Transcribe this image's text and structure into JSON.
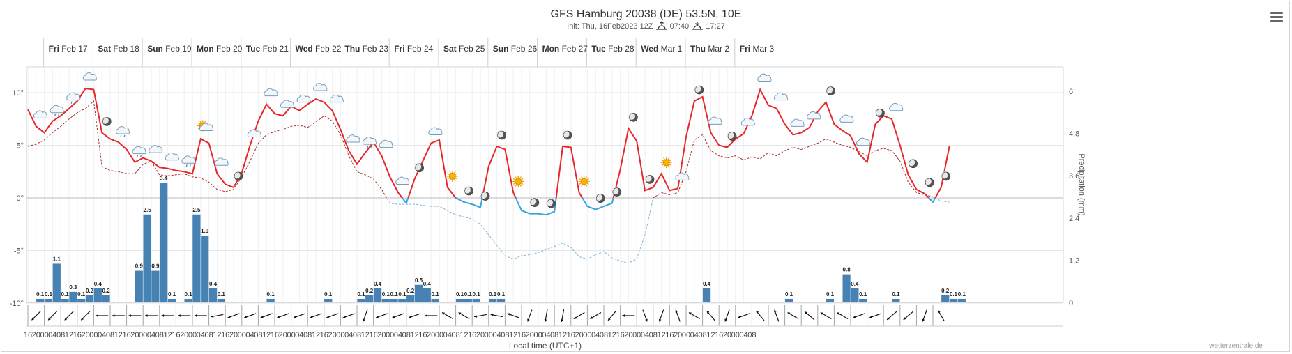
{
  "header": {
    "title": "GFS Hamburg 20038 (DE) 53.5N, 10E",
    "subtitle_prefix": "Init: Thu, 16Feb2023 12Z",
    "sunrise": "07:40",
    "sunset": "17:27"
  },
  "footer": {
    "credit": "wetterzentrale.de"
  },
  "chart_data": {
    "type": "line",
    "xlabel": "Local time (UTC+1)",
    "ylabel_right": "Precipitation (mm)",
    "y_left_ticks": [
      "10°",
      "5°",
      "0°",
      "-5°",
      "-10°"
    ],
    "y_left_range": [
      -10,
      12
    ],
    "y_right_ticks": [
      "6",
      "4.8",
      "3.6",
      "2.4",
      "1.2",
      "0"
    ],
    "y_right_range": [
      0,
      6
    ],
    "days": [
      "Fri Feb 17",
      "Sat Feb 18",
      "Sun Feb 19",
      "Mon Feb 20",
      "Tue Feb 21",
      "Wed Feb 22",
      "Thu Feb 23",
      "Fri Feb 24",
      "Sat Feb 25",
      "Sun Feb 26",
      "Mon Feb 27",
      "Tue Feb 28",
      "Wed Mar 1",
      "Thu Mar 2",
      "Fri Mar 3"
    ],
    "hour_labels": [
      "16",
      "20",
      "00",
      "04",
      "08",
      "12",
      "16",
      "20",
      "00",
      "04",
      "08",
      "12",
      "16",
      "20",
      "00",
      "04",
      "08",
      "12",
      "16",
      "20",
      "00",
      "04",
      "08",
      "12",
      "16",
      "20",
      "00",
      "04",
      "08",
      "12",
      "16",
      "20",
      "00",
      "04",
      "08",
      "12",
      "16",
      "20",
      "00",
      "04",
      "08",
      "12",
      "16",
      "20",
      "00",
      "04",
      "08",
      "12",
      "16",
      "20",
      "00",
      "04",
      "08",
      "12",
      "16",
      "20",
      "00",
      "04",
      "08",
      "12",
      "16",
      "20",
      "00",
      "04",
      "08",
      "12",
      "16",
      "20",
      "00",
      "04",
      "08",
      "12",
      "16",
      "20",
      "00",
      "04",
      "08",
      "12",
      "16",
      "20",
      "00",
      "04",
      "08",
      "12",
      "16",
      "20",
      "00",
      "04",
      "08"
    ],
    "series": [
      {
        "name": "Temperature",
        "color": "#e8262a",
        "color_below_zero": "#3ba3dd",
        "values": [
          8.4,
          6.8,
          6.2,
          7.3,
          7.8,
          8.5,
          9.2,
          10.4,
          10.3,
          6.2,
          5.6,
          5.3,
          4.6,
          3.4,
          3.8,
          3.5,
          2.9,
          2.8,
          2.6,
          2.5,
          2.3,
          5.6,
          5.2,
          2.3,
          1.3,
          1.0,
          2.4,
          5.0,
          7.3,
          8.9,
          8.0,
          7.8,
          8.7,
          8.3,
          8.9,
          9.4,
          9.1,
          8.3,
          6.5,
          4.5,
          3.2,
          4.3,
          5.3,
          4.0,
          2.0,
          0.5,
          -0.5,
          1.8,
          3.5,
          5.2,
          5.5,
          1.0,
          0.0,
          -0.4,
          -0.6,
          -0.9,
          3.0,
          4.9,
          4.6,
          0.5,
          -1.2,
          -1.5,
          -1.5,
          -1.6,
          -1.3,
          4.9,
          4.8,
          0.5,
          -0.8,
          -1.1,
          -0.8,
          -0.5,
          2.7,
          6.6,
          5.4,
          0.7,
          1.0,
          2.3,
          0.7,
          0.9,
          5.8,
          9.2,
          9.6,
          6.2,
          5.0,
          4.8,
          5.6,
          6.1,
          7.8,
          10.3,
          8.8,
          8.5,
          7.0,
          6.0,
          6.2,
          6.7,
          8.2,
          9.1,
          7.0,
          6.4,
          5.9,
          4.2,
          3.4,
          7.0,
          7.8,
          7.5,
          5.0,
          2.2,
          0.8,
          0.4,
          -0.4,
          1.0,
          4.9
        ]
      },
      {
        "name": "Dew point",
        "color": "#a52a2a",
        "dashed": true,
        "values": [
          4.9,
          5.1,
          5.5,
          6.2,
          6.8,
          7.5,
          8.1,
          8.5,
          9.2,
          3.0,
          2.6,
          2.5,
          2.3,
          2.3,
          3.2,
          3.5,
          2.2,
          2.1,
          2.2,
          2.3,
          2.0,
          1.9,
          1.5,
          0.8,
          0.6,
          0.8,
          2.0,
          3.5,
          5.2,
          6.0,
          6.3,
          6.5,
          6.8,
          6.9,
          6.7,
          7.2,
          7.8,
          7.3,
          6.0,
          4.0,
          2.5,
          2.2,
          1.8,
          0.8,
          -0.5,
          -0.6,
          -0.6,
          -0.6,
          -0.7,
          -0.8,
          -0.8,
          -1.2,
          -1.6,
          -1.8,
          -2.0,
          -2.5,
          -3.5,
          -4.5,
          -5.5,
          -5.8,
          -5.5,
          -5.4,
          -5.2,
          -4.9,
          -4.6,
          -4.3,
          -4.7,
          -5.6,
          -5.8,
          -5.4,
          -5.1,
          -5.7,
          -6.0,
          -6.2,
          -5.8,
          -3.5,
          0.0,
          0.5,
          0.3,
          0.5,
          2.5,
          5.5,
          6.0,
          4.5,
          4.0,
          3.8,
          4.0,
          3.6,
          3.9,
          3.7,
          4.3,
          4.0,
          4.5,
          4.8,
          4.6,
          4.9,
          5.2,
          5.6,
          5.3,
          5.0,
          4.8,
          4.4,
          4.0,
          4.5,
          4.7,
          4.5,
          3.5,
          1.5,
          0.5,
          0.3,
          0.1,
          -0.3,
          -0.4
        ]
      }
    ],
    "precip_bars": [
      {
        "x": 1.5,
        "v": 0.1
      },
      {
        "x": 2.5,
        "v": 0.1
      },
      {
        "x": 3.5,
        "v": 1.1
      },
      {
        "x": 4.5,
        "v": 0.1
      },
      {
        "x": 5.5,
        "v": 0.3
      },
      {
        "x": 6.5,
        "v": 0.1
      },
      {
        "x": 7.5,
        "v": 0.2
      },
      {
        "x": 8.5,
        "v": 0.4
      },
      {
        "x": 9.5,
        "v": 0.2
      },
      {
        "x": 13.5,
        "v": 0.9
      },
      {
        "x": 14.5,
        "v": 2.5
      },
      {
        "x": 15.5,
        "v": 0.9
      },
      {
        "x": 16.5,
        "v": 3.4
      },
      {
        "x": 17.5,
        "v": 0.1
      },
      {
        "x": 19.5,
        "v": 0.1
      },
      {
        "x": 20.5,
        "v": 2.5
      },
      {
        "x": 21.5,
        "v": 1.9
      },
      {
        "x": 22.5,
        "v": 0.4
      },
      {
        "x": 23.5,
        "v": 0.1
      },
      {
        "x": 29.5,
        "v": 0.1
      },
      {
        "x": 36.5,
        "v": 0.1
      },
      {
        "x": 40.5,
        "v": 0.1
      },
      {
        "x": 41.5,
        "v": 0.2
      },
      {
        "x": 42.5,
        "v": 0.4
      },
      {
        "x": 43.5,
        "v": 0.1
      },
      {
        "x": 44.5,
        "v": 0.1
      },
      {
        "x": 45.5,
        "v": 0.1
      },
      {
        "x": 46.5,
        "v": 0.2
      },
      {
        "x": 47.5,
        "v": 0.5
      },
      {
        "x": 48.5,
        "v": 0.4
      },
      {
        "x": 49.5,
        "v": 0.1
      },
      {
        "x": 52.5,
        "v": 0.1
      },
      {
        "x": 53.5,
        "v": 0.1
      },
      {
        "x": 54.5,
        "v": 0.1
      },
      {
        "x": 56.5,
        "v": 0.1
      },
      {
        "x": 57.5,
        "v": 0.1
      },
      {
        "x": 82.5,
        "v": 0.4
      },
      {
        "x": 92.5,
        "v": 0.1
      },
      {
        "x": 97.5,
        "v": 0.1
      },
      {
        "x": 99.5,
        "v": 0.8
      },
      {
        "x": 100.5,
        "v": 0.4
      },
      {
        "x": 101.5,
        "v": 0.1
      },
      {
        "x": 105.5,
        "v": 0.1
      },
      {
        "x": 111.5,
        "v": 0.2
      },
      {
        "x": 112.5,
        "v": 0.1
      },
      {
        "x": 113.5,
        "v": 0.1
      }
    ],
    "weather_icons": [
      "cloud",
      "cloud-rain",
      "cloud-rain",
      "cloud",
      "moon",
      "cloud-rain",
      "cloud-rain",
      "cloud",
      "cloud",
      "cloud-rain",
      "sun-cloud",
      "cloud",
      "moon",
      "cloud",
      "cloud",
      "cloud",
      "cloud",
      "cloud",
      "cloud",
      "cloud",
      "cloud-rain",
      "cloud",
      "cloud",
      "moon",
      "cloud",
      "sun",
      "moon",
      "moon",
      "moon",
      "sun",
      "moon",
      "moon",
      "moon",
      "sun",
      "moon",
      "moon",
      "moon",
      "moon",
      "sun",
      "cloud",
      "moon",
      "cloud",
      "moon",
      "cloud",
      "cloud",
      "cloud",
      "cloud",
      "cloud",
      "moon",
      "cloud",
      "cloud",
      "moon",
      "cloud",
      "moon",
      "moon",
      "moon"
    ],
    "wind_directions_deg": [
      225,
      225,
      225,
      225,
      270,
      270,
      270,
      270,
      270,
      270,
      270,
      260,
      250,
      250,
      250,
      250,
      250,
      250,
      250,
      250,
      200,
      250,
      250,
      250,
      270,
      300,
      300,
      260,
      280,
      290,
      200,
      190,
      190,
      240,
      240,
      220,
      270,
      160,
      200,
      340,
      300,
      320,
      200,
      250,
      320,
      340,
      300,
      310,
      300,
      300,
      250,
      250,
      230,
      230,
      200,
      330
    ],
    "grid": true,
    "legend": "none"
  }
}
